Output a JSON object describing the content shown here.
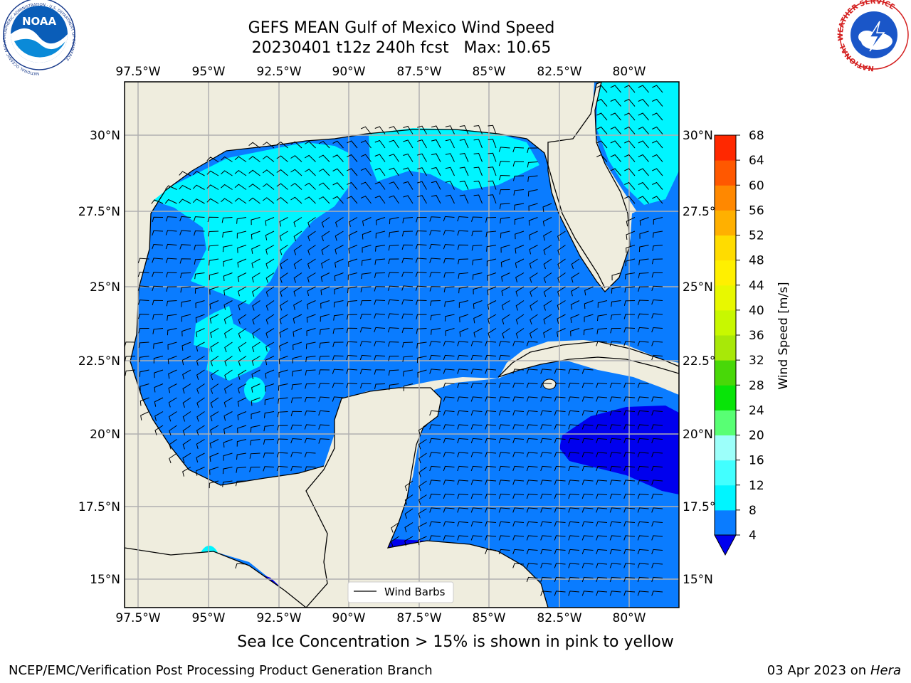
{
  "title": {
    "line1": "GEFS MEAN Gulf of Mexico Wind Speed",
    "line2": "20230401 t12z 240h fcst   Max: 10.65"
  },
  "logos": {
    "left": "NOAA",
    "left_ring_text": "NATIONAL OCEANIC AND ATMOSPHERIC ADMINISTRATION · U.S. DEPARTMENT OF COMMERCE",
    "right_ring_text": "NATIONAL WEATHER SERVICE"
  },
  "axes": {
    "lon_labels": [
      "97.5°W",
      "95°W",
      "92.5°W",
      "90°W",
      "87.5°W",
      "85°W",
      "82.5°W",
      "80°W"
    ],
    "lat_labels_left": [
      "30°N",
      "27.5°N",
      "25°N",
      "22.5°N",
      "20°N",
      "17.5°N",
      "15°N"
    ],
    "lat_labels_right": [
      "30°N",
      "27.5°N",
      "25°N",
      "22.5°N",
      "20°N",
      "17.5°N",
      "15°N"
    ]
  },
  "legend": {
    "label": "Wind Barbs"
  },
  "colorbar": {
    "label": "Wind Speed [m/s]",
    "ticks": [
      "4",
      "8",
      "12",
      "16",
      "20",
      "24",
      "28",
      "32",
      "36",
      "40",
      "44",
      "48",
      "52",
      "56",
      "60",
      "64",
      "68"
    ],
    "colors": [
      "#0a7cff",
      "#00f5ff",
      "#42ffff",
      "#9cfffa",
      "#58ff74",
      "#08e408",
      "#48d808",
      "#a8e808",
      "#c8f800",
      "#e8f800",
      "#fff000",
      "#ffdc00",
      "#ffb000",
      "#ff8800",
      "#ff5800",
      "#ff2800",
      "#ff0000"
    ],
    "extend_color": "#0000ee"
  },
  "map_colors": {
    "land": "#efedde",
    "speed_4_8": "#0a7cff",
    "speed_8_12": "#00f5ff",
    "speed_below_4": "#0000ee"
  },
  "caption": "Sea Ice Concentration > 15% is shown in pink to yellow",
  "footer": {
    "left": "NCEP/EMC/Verification Post Processing Product Generation Branch",
    "right_date": "03 Apr 2023 on ",
    "right_machine": "Hera"
  }
}
